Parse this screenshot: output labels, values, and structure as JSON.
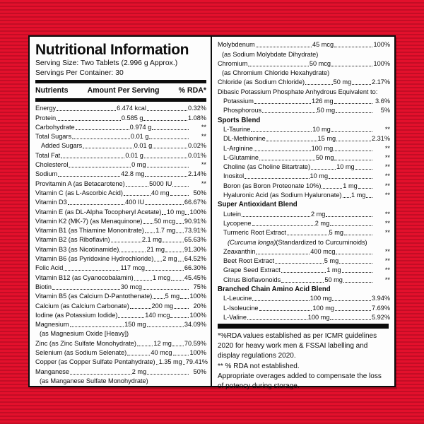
{
  "colors": {
    "background_red": "#e3102c",
    "stripe_red": "#c30d25",
    "panel_white": "#fdfdfd",
    "ink_black": "#0d0d0d"
  },
  "label": {
    "title": "Nutritional Information",
    "serving_size": "Serving Size: Two Tablets (2.996 g Approx.)",
    "servings_per_container": "Servings Per Container: 30",
    "columns": {
      "nutrients": "Nutrients",
      "amount": "Amount Per Serving",
      "rda": "% RDA*"
    },
    "left_rows": [
      {
        "t": "row",
        "n": "Energy",
        "a": "6.474 kcal",
        "p": "0.32%"
      },
      {
        "t": "row",
        "n": "Protein",
        "a": "0.585 g",
        "p": "1.08%"
      },
      {
        "t": "row",
        "n": "Carbohydrate",
        "a": "0.974 g",
        "p": "**"
      },
      {
        "t": "row",
        "n": "Total Sugars",
        "a": "0.01 g",
        "p": "**"
      },
      {
        "t": "row",
        "n": "Added Sugars",
        "a": "0.01 g",
        "p": "0.02%",
        "ind": 1
      },
      {
        "t": "row",
        "n": "Total Fat",
        "a": "0.01 g",
        "p": "0.01%"
      },
      {
        "t": "row",
        "n": "Cholesterol",
        "a": "0 mg",
        "p": "**"
      },
      {
        "t": "row",
        "n": "Sodium",
        "a": "42.8 mg",
        "p": "2.14%"
      },
      {
        "t": "row",
        "n": "Provitamin A (as Betacarotene)",
        "a": "5000 IU",
        "p": "**"
      },
      {
        "t": "row",
        "n": "Vitamin C (as L-Ascorbic Acid)",
        "a": "40 mg",
        "p": "50%"
      },
      {
        "t": "row",
        "n": "Vitamin D3",
        "a": "400 IU",
        "p": "66.67%"
      },
      {
        "t": "row",
        "n": "Vitamin E (as DL-Alpha Tocopheryl Acetate)",
        "a": "10 mg",
        "p": "100%"
      },
      {
        "t": "row",
        "n": "Vitamin K2 (MK-7) (as Menaquinone)",
        "a": "50 mcg",
        "p": "90.91%"
      },
      {
        "t": "row",
        "n": "Vitamin B1 (as Thiamine Mononitrate)",
        "a": "1.7 mg",
        "p": "73.91%"
      },
      {
        "t": "row",
        "n": "Vitamin B2 (as Riboflavin)",
        "a": "2.1 mg",
        "p": "65.63%"
      },
      {
        "t": "row",
        "n": "Vitamin B3 (as Nicotinamide)",
        "a": "21 mg",
        "p": "91.30%"
      },
      {
        "t": "row",
        "n": "Vitamin B6 (as Pyridoxine Hydrochloride)",
        "a": "2 mg",
        "p": "64.52%"
      },
      {
        "t": "row",
        "n": "Folic Acid",
        "a": "117 mcg",
        "p": "66.30%"
      },
      {
        "t": "row",
        "n": "Vitamin B12 (as Cyanocobalamin)",
        "a": "1 mcg",
        "p": "45.45%"
      },
      {
        "t": "row",
        "n": "Biotin",
        "a": "30 mcg",
        "p": "75%"
      },
      {
        "t": "row",
        "n": "Vitamin B5 (as Calcium D-Pantothenate)",
        "a": "5 mg",
        "p": "100%"
      },
      {
        "t": "row",
        "n": "Calcium (as Calcium Carbonate)",
        "a": "200 mg",
        "p": "20%"
      },
      {
        "t": "row",
        "n": "Iodine (as Potassium Iodide)",
        "a": "140 mcg",
        "p": "100%"
      },
      {
        "t": "row",
        "n": "Magnesium",
        "a": "150 mg",
        "p": "34.09%"
      },
      {
        "t": "sub",
        "n": "(as Magnesium Oxide [Heavy])"
      },
      {
        "t": "row",
        "n": "Zinc (as Zinc Sulfate Monohydrate)",
        "a": "12 mg",
        "p": "70.59%"
      },
      {
        "t": "row",
        "n": "Selenium (as Sodium Selenate)",
        "a": "40 mcg",
        "p": "100%"
      },
      {
        "t": "row",
        "n": "Copper (as Copper Sulfate Pentahydrate)",
        "a": "1.35 mg",
        "p": "79.41%"
      },
      {
        "t": "row",
        "n": "Manganese",
        "a": "2 mg",
        "p": "50%"
      },
      {
        "t": "sub",
        "n": "(as Manganese Sulfate Monohydrate)"
      }
    ],
    "right_rows": [
      {
        "t": "row",
        "n": "Molybdenum",
        "a": "45 mcg",
        "p": "100%"
      },
      {
        "t": "sub",
        "n": "(as Sodium Molybdate Dihydrate)"
      },
      {
        "t": "row",
        "n": "Chromium",
        "a": "50 mcg",
        "p": "100%"
      },
      {
        "t": "sub",
        "n": "(as Chromium Chloride Hexahydrate)"
      },
      {
        "t": "row",
        "n": "Chloride (as Sodium Chloride)",
        "a": "50 mg",
        "p": "2.17%"
      },
      {
        "t": "text",
        "n": "Dibasic Potassium Phosphate Anhydrous Equivalent to:"
      },
      {
        "t": "row",
        "n": "Potassium",
        "a": "126 mg",
        "p": "3.6%",
        "ind": 1
      },
      {
        "t": "row",
        "n": "Phosphorous",
        "a": "50 mg",
        "p": "5%",
        "ind": 1
      },
      {
        "t": "head",
        "n": "Sports Blend"
      },
      {
        "t": "row",
        "n": "L-Taurine",
        "a": "10 mg",
        "p": "**",
        "ind": 1
      },
      {
        "t": "row",
        "n": "DL-Methionine",
        "a": "15 mg",
        "p": "2.31%",
        "ind": 1
      },
      {
        "t": "row",
        "n": "L-Arginine",
        "a": "100 mg",
        "p": "**",
        "ind": 1
      },
      {
        "t": "row",
        "n": "L-Glutamine",
        "a": "50 mg",
        "p": "**",
        "ind": 1
      },
      {
        "t": "row",
        "n": "Choline (as Choline Bitartrate)",
        "a": "10 mg",
        "p": "**",
        "ind": 1
      },
      {
        "t": "row",
        "n": "Inositol",
        "a": "10 mg",
        "p": "**",
        "ind": 1
      },
      {
        "t": "row",
        "n": "Boron (as Boron Proteonate 10%)",
        "a": "1 mg",
        "p": "**",
        "ind": 1
      },
      {
        "t": "row",
        "n": "Hyaluronic Acid (as Sodium Hyaluronate)",
        "a": "1 mg",
        "p": "**",
        "ind": 1
      },
      {
        "t": "head",
        "n": "Super Antioxidant Blend"
      },
      {
        "t": "row",
        "n": "Lutein",
        "a": "2 mg",
        "p": "**",
        "ind": 1
      },
      {
        "t": "row",
        "n": "Lycopene",
        "a": "2 mg",
        "p": "**",
        "ind": 1
      },
      {
        "t": "row",
        "n": "Turmeric Root Extract",
        "a": "5 mg",
        "p": "**",
        "ind": 1
      },
      {
        "t": "sub2",
        "italic": "(Curcuma longa)",
        "rest": "(Standardized to Curcuminoids)",
        "ind": 1
      },
      {
        "t": "row",
        "n": "Zeaxanthin",
        "a": "400 mcg",
        "p": "**",
        "ind": 1
      },
      {
        "t": "row",
        "n": "Beet Root Extract",
        "a": "5 mg",
        "p": "**",
        "ind": 1
      },
      {
        "t": "row",
        "n": "Grape Seed Extract",
        "a": "1 mg",
        "p": "**",
        "ind": 1
      },
      {
        "t": "row",
        "n": "Citrus Bioflavonoids",
        "a": "50 mg",
        "p": "**",
        "ind": 1
      },
      {
        "t": "head",
        "n": "Branched Chain Amino Acid Blend"
      },
      {
        "t": "row",
        "n": "L-Leucine",
        "a": "100 mg",
        "p": "3.94%",
        "ind": 1
      },
      {
        "t": "row",
        "n": "L-Isoleucine",
        "a": "100 mg",
        "p": "7.69%",
        "ind": 1
      },
      {
        "t": "row",
        "n": "L-Valine",
        "a": "100 mg",
        "p": "5.92%",
        "ind": 1
      }
    ],
    "footnotes": [
      "*%RDA values established as per ICMR guidelines 2020 for heavy work men & FSSAI labelling and display regulations 2020.",
      "** % RDA not established.",
      "Appropriate overages added to compensate the loss of potency during storage."
    ]
  }
}
